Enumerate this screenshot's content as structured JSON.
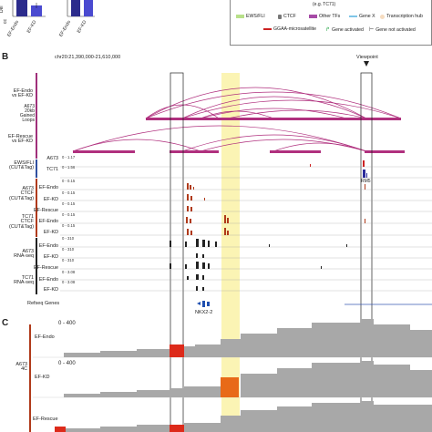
{
  "panels": {
    "b": "B",
    "c": "C"
  },
  "panel_a": {
    "axis_label_fragments": [
      "Del",
      "cc"
    ],
    "x_labels": [
      "EF-Endo",
      "EF-KD",
      "EF-Endo",
      "EF-KD"
    ],
    "bar_colors": [
      "#2b2b8c",
      "#4a4ad0"
    ]
  },
  "legend": {
    "note": "(e.g. TC71)",
    "items": [
      {
        "label": "EWS/FLI",
        "color": "#b8e08a"
      },
      {
        "label": "CTCF",
        "color": "#777777"
      },
      {
        "label": "Other TFs",
        "color": "#a64aa6"
      },
      {
        "label": "Gene X",
        "color": "#7fc6e8"
      },
      {
        "label": "Transcription hub",
        "color": "#f6dcc0"
      },
      {
        "label": "GGAA-microsatellite",
        "color": "#cc2222"
      },
      {
        "label": "Gene activated",
        "color": "#2aa84a"
      },
      {
        "label": "Gene not activated",
        "color": "#333333"
      }
    ]
  },
  "panel_b": {
    "coords": "chr20:21,390,000-21,610,000",
    "viewpoint": "Viewpoint",
    "loops_group": "A673\n20kb\nGained\nLoops",
    "loops_a": "EF-Endo\nvs EF-KD",
    "loops_b": "EF-Rescue\nvs EF-KD",
    "ews_label": "EWS/FLI\n(CUT&Tag)",
    "ews_tracks": [
      {
        "name": "A673",
        "range": "0 - 1.17"
      },
      {
        "name": "TC71",
        "range": "0 - 1.56"
      }
    ],
    "ctcf_a673_label": "A673\nCTCF\n(CUT&Tag)",
    "ctcf_tc71_label": "TC71\nCTCF\n(CUT&Tag)",
    "ctcf_tracks": [
      {
        "name": "EF-Endo",
        "range": "0 - 0.15"
      },
      {
        "name": "EF-KD",
        "range": "0 - 0.15"
      },
      {
        "name": "EF-Rescue",
        "range": "0 - 0.15"
      },
      {
        "name": "EF-Endo",
        "range": "0 - 0.15"
      },
      {
        "name": "EF-KD",
        "range": "0 - 0.15"
      }
    ],
    "rna_a673_label": "A673\nRNA-seq",
    "rna_tc71_label": "TC71\nRNA-seq",
    "rna_tracks": [
      {
        "name": "EF-Endo",
        "range": "0 - 310"
      },
      {
        "name": "EF-KD",
        "range": "0 - 310"
      },
      {
        "name": "EF-Rescue",
        "range": "0 - 310"
      },
      {
        "name": "EF-Endo",
        "range": "0 - 3.08"
      },
      {
        "name": "EF-KD",
        "range": "0 - 3.08"
      }
    ],
    "rm5": "RM5",
    "refseq": "Refseq Genes",
    "gene": "NKX2-2"
  },
  "panel_c": {
    "group": "A673\n4C",
    "tracks": [
      {
        "name": "EF-Endo",
        "range": "0 - 400"
      },
      {
        "name": "EF-KD",
        "range": "0 - 400"
      },
      {
        "name": "EF-Rescue",
        "range": ""
      }
    ]
  }
}
